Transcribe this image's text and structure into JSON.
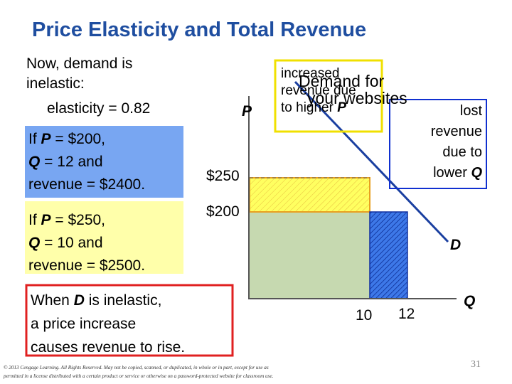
{
  "title": "Price Elasticity and Total Revenue",
  "intro": [
    "Now, demand is",
    "inelastic:",
    "elasticity = 0.82"
  ],
  "case_200": {
    "line1": [
      "If ",
      "P",
      " = $200,"
    ],
    "line2": [
      "Q",
      " = 12 and"
    ],
    "line3": "revenue = $2400."
  },
  "case_250": {
    "line1": [
      "If ",
      "P",
      " = $250,"
    ],
    "line2": [
      "Q",
      " = 10 and"
    ],
    "line3": "revenue = $2500."
  },
  "conclusion": {
    "line1": [
      "When ",
      "D",
      " is inelastic,"
    ],
    "line2": "a price increase",
    "line3": "causes revenue to rise."
  },
  "graph": {
    "p_axis": "P",
    "q_axis": "Q",
    "price_high": "$250",
    "price_low": "$200",
    "q_low": "10",
    "q_high": "12",
    "demand": "D",
    "watermark": [
      "Demand for",
      "your websites"
    ],
    "gain": [
      "increased",
      "revenue due",
      "to higher ",
      "P"
    ],
    "loss": [
      "lost",
      "revenue",
      "due to",
      "lower ",
      "Q"
    ]
  },
  "footer": [
    "© 2013 Cengage Learning. All Rights Reserved. May not be copied, scanned, or duplicated, in whole or in part, except for use as",
    "permitted in a license distributed with a certain product or service or otherwise on a password-protected website for classroom use."
  ],
  "page_number": "31"
}
